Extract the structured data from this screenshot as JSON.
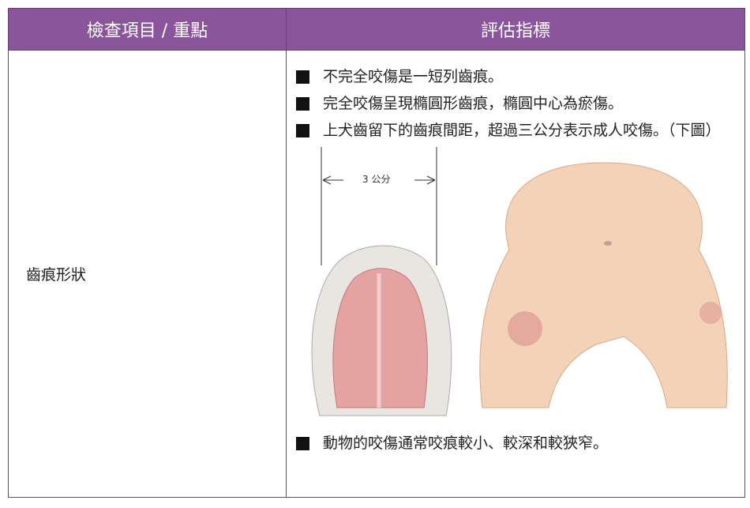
{
  "table": {
    "header": [
      "檢查項目 / 重點",
      "評估指標"
    ],
    "rows": [
      {
        "item": "齒痕形狀",
        "points": [
          "不完全咬傷是一短列齒痕。",
          "完全咬傷呈現橢圓形齒痕，橢圓中心為瘀傷。",
          "上犬齒留下的齒痕間距，超過三公分表示成人咬傷。（下圖）"
        ],
        "figure_label": "3 公分",
        "more_points": [
          "動物的咬傷通常咬痕較小、較深和較狹窄。"
        ]
      }
    ]
  }
}
